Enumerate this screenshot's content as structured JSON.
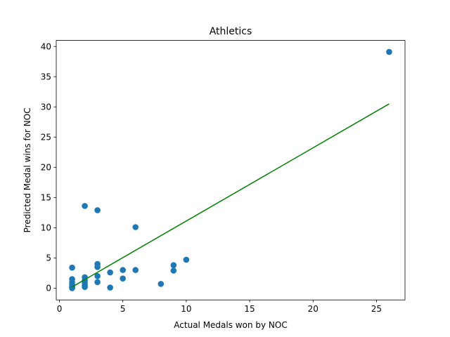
{
  "chart_data": {
    "type": "scatter",
    "title": "Athletics",
    "xlabel": "Actual Medals won by NOC",
    "ylabel": "Predicted Medal wins for NOC",
    "xlim": [
      -0.25,
      27.25
    ],
    "ylim": [
      -1.95,
      41.0
    ],
    "xticks": [
      0,
      5,
      10,
      15,
      20,
      25
    ],
    "yticks": [
      0,
      5,
      10,
      15,
      20,
      25,
      30,
      35,
      40
    ],
    "grid": false,
    "colors": {
      "points": "#1f77b4",
      "fit_line": "#008000"
    },
    "series": [
      {
        "type": "scatter",
        "points": [
          [
            1,
            3.4
          ],
          [
            1,
            1.5
          ],
          [
            1,
            1.0
          ],
          [
            1,
            0.6
          ],
          [
            1,
            0.3
          ],
          [
            1,
            0.1
          ],
          [
            1,
            0.0
          ],
          [
            2,
            13.6
          ],
          [
            2,
            1.8
          ],
          [
            2,
            1.3
          ],
          [
            2,
            0.9
          ],
          [
            2,
            0.5
          ],
          [
            2,
            0.2
          ],
          [
            3,
            12.9
          ],
          [
            3,
            4.0
          ],
          [
            3,
            3.5
          ],
          [
            3,
            2.0
          ],
          [
            3,
            1.0
          ],
          [
            4,
            2.6
          ],
          [
            4,
            0.1
          ],
          [
            5,
            3.0
          ],
          [
            5,
            1.6
          ],
          [
            6,
            10.1
          ],
          [
            6,
            3.0
          ],
          [
            8,
            0.7
          ],
          [
            9,
            3.8
          ],
          [
            9,
            2.9
          ],
          [
            10,
            4.7
          ],
          [
            26,
            39.1
          ]
        ]
      },
      {
        "type": "line",
        "points": [
          [
            1,
            0.2
          ],
          [
            26,
            30.5
          ]
        ]
      }
    ]
  }
}
